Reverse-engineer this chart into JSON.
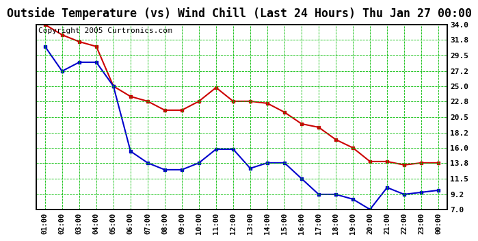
{
  "title": "Outside Temperature (vs) Wind Chill (Last 24 Hours) Thu Jan 27 00:00",
  "copyright": "Copyright 2005 Curtronics.com",
  "x_labels": [
    "01:00",
    "02:00",
    "03:00",
    "04:00",
    "05:00",
    "06:00",
    "07:00",
    "08:00",
    "09:00",
    "10:00",
    "11:00",
    "12:00",
    "13:00",
    "14:00",
    "15:00",
    "16:00",
    "17:00",
    "18:00",
    "19:00",
    "20:00",
    "21:00",
    "22:00",
    "23:00",
    "00:00"
  ],
  "y_ticks": [
    7.0,
    9.2,
    11.5,
    13.8,
    16.0,
    18.2,
    20.5,
    22.8,
    25.0,
    27.2,
    29.5,
    31.8,
    34.0
  ],
  "y_min": 7.0,
  "y_max": 34.0,
  "red_data": [
    34.0,
    32.5,
    31.5,
    30.8,
    25.0,
    23.5,
    22.8,
    21.5,
    21.5,
    22.8,
    24.8,
    22.8,
    22.8,
    22.5,
    21.2,
    19.5,
    19.0,
    17.2,
    16.0,
    14.0,
    14.0,
    13.5,
    13.8,
    13.8
  ],
  "blue_data": [
    30.8,
    27.2,
    28.5,
    28.5,
    25.0,
    15.5,
    13.8,
    12.8,
    12.8,
    13.8,
    15.8,
    15.8,
    13.0,
    13.8,
    13.8,
    11.5,
    9.2,
    9.2,
    8.5,
    7.0,
    10.2,
    9.2,
    9.5,
    9.8
  ],
  "red_color": "#cc0000",
  "blue_color": "#0000cc",
  "bg_color": "#ffffff",
  "plot_bg_color": "#ffffff",
  "grid_color": "#00bb00",
  "title_fontsize": 12,
  "copyright_fontsize": 8
}
